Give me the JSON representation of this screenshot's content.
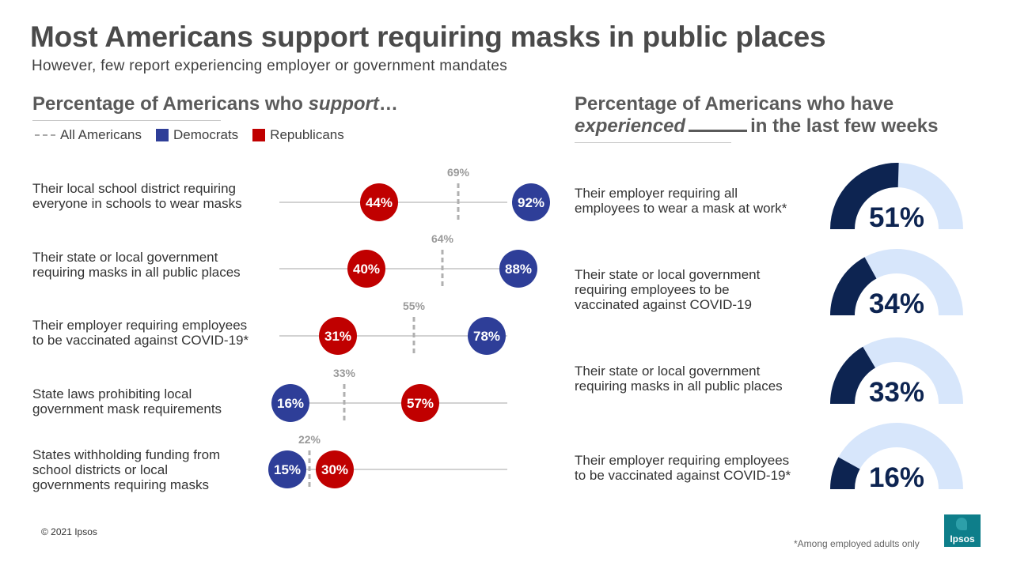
{
  "title": "Most Americans support requiring masks in public places",
  "subtitle": "However, few report experiencing employer or government mandates",
  "left_heading": {
    "prefix": "Percentage of Americans who ",
    "emph": "support",
    "suffix": "…"
  },
  "legend": {
    "all": "All Americans",
    "dem": "Democrats",
    "rep": "Republicans"
  },
  "colors": {
    "dem": "#2e3e98",
    "rep": "#c00000",
    "all_line": "#b0b0b0",
    "axis": "#a6a6a6",
    "gauge_fill": "#0d2451",
    "gauge_bg": "#d7e6fb",
    "gauge_text": "#0d2451"
  },
  "right_heading": {
    "line1": "Percentage of Americans who have",
    "emph": "experienced",
    "line2_suffix": "in the last few weeks"
  },
  "chart_data": [
    {
      "type": "scatter",
      "title": "Percentage of Americans who support…",
      "categories": [
        [
          "Their local school district requiring",
          "everyone in schools to wear masks"
        ],
        [
          "Their state or local government",
          "requiring masks in all public places"
        ],
        [
          "Their employer requiring employees",
          "to be vaccinated against COVID-19*"
        ],
        [
          "State laws prohibiting local",
          "government mask requirements"
        ],
        [
          "States withholding funding from",
          "school districts or local",
          "governments requiring masks"
        ]
      ],
      "series": [
        {
          "name": "All Americans",
          "values": [
            69,
            64,
            55,
            33,
            22
          ]
        },
        {
          "name": "Democrats",
          "values": [
            92,
            88,
            78,
            16,
            15
          ]
        },
        {
          "name": "Republicans",
          "values": [
            44,
            40,
            31,
            57,
            30
          ]
        }
      ],
      "value_suffix": "%"
    },
    {
      "type": "gauge",
      "title": "Percentage of Americans who have experienced _____ in the last few weeks",
      "categories": [
        [
          "Their employer requiring all",
          "employees to wear a mask at work*"
        ],
        [
          "Their state or local government",
          "requiring employees to be",
          "vaccinated against COVID-19"
        ],
        [
          "Their state or local government",
          "requiring masks in all public places"
        ],
        [
          "Their employer requiring employees",
          "to be vaccinated against COVID-19*"
        ]
      ],
      "values": [
        51,
        34,
        33,
        16
      ],
      "value_suffix": "%"
    }
  ],
  "footer": {
    "copyright": "© 2021 Ipsos",
    "footnote": "*Among employed adults only",
    "logo": "Ipsos"
  }
}
